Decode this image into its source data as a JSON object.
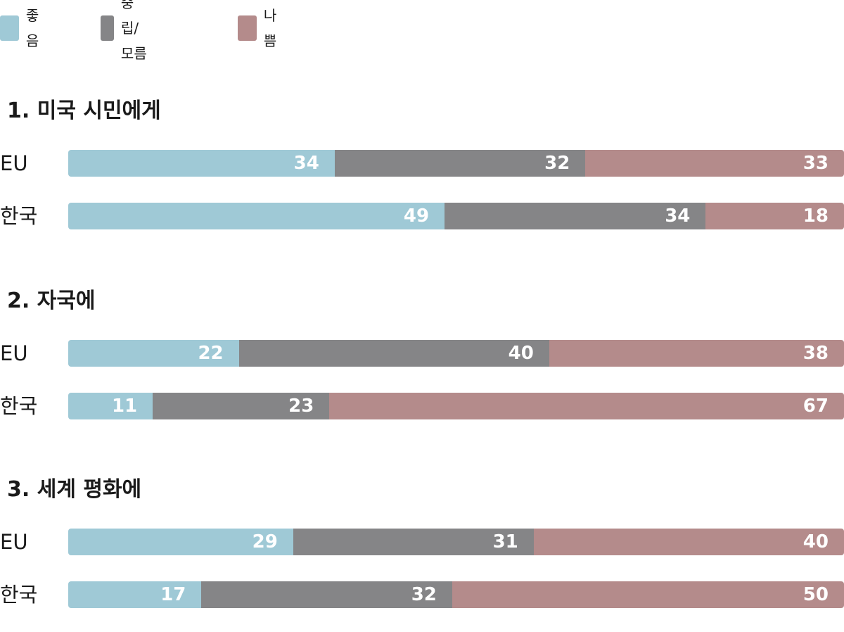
{
  "chart_data": {
    "type": "bar",
    "orientation": "horizontal",
    "stacked": true,
    "legend": [
      {
        "name": "좋음",
        "color": "#9fc9d6"
      },
      {
        "name": "중립/모름",
        "color": "#858587"
      },
      {
        "name": "나쁨",
        "color": "#b48b8b"
      }
    ],
    "legend_position": "top-left",
    "grid": false,
    "groups": [
      {
        "title": "1. 미국 시민에게",
        "rows": [
          {
            "label": "EU",
            "values": [
              34,
              32,
              33
            ]
          },
          {
            "label": "한국",
            "values": [
              49,
              34,
              18
            ]
          }
        ]
      },
      {
        "title": "2. 자국에",
        "rows": [
          {
            "label": "EU",
            "values": [
              22,
              40,
              38
            ]
          },
          {
            "label": "한국",
            "values": [
              11,
              23,
              67
            ]
          }
        ]
      },
      {
        "title": "3. 세계 평화에",
        "rows": [
          {
            "label": "EU",
            "values": [
              29,
              31,
              40
            ]
          },
          {
            "label": "한국",
            "values": [
              17,
              32,
              50
            ]
          }
        ]
      }
    ]
  }
}
